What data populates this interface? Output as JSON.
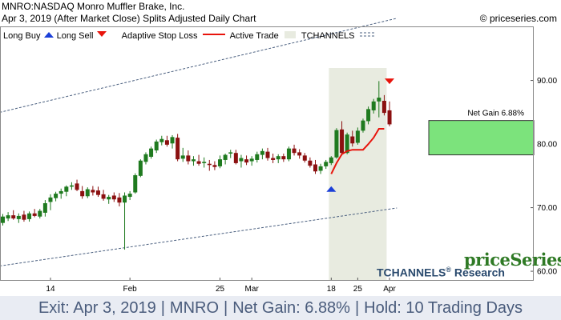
{
  "header": {
    "title": "MNRO:NASDAQ Monro Muffler Brake, Inc.",
    "subtitle": "Apr 3, 2019 (After Market Close)  Splits Adjusted Daily Chart",
    "copyright": "© priceseries.com"
  },
  "legend": {
    "long_buy": "Long Buy",
    "long_sell": "Long Sell",
    "stop_loss": "Adaptive Stop Loss",
    "active_trade": "Active Trade",
    "tchannels": "TCHANNELS"
  },
  "branding": {
    "logo_text": "priceSeries",
    "tchannels_text": "TCHANNELS",
    "reg": "®",
    "research_text": "Research"
  },
  "footer": {
    "exit": "Exit: Apr 3, 2019",
    "symbol": "MNRO",
    "gain": "Net Gain: 6.88%",
    "hold": "Hold: 10 Trading Days"
  },
  "colors": {
    "up_candle": "#1f7a1f",
    "down_candle": "#8b1010",
    "stop_loss": "#e8140c",
    "channel": "#4a5f7f",
    "active_trade_bg": "#e8ebe0",
    "gain_box": "#7ce37c",
    "buy_arrow": "#1b3fd8",
    "sell_arrow": "#e8140c"
  },
  "chart_data": {
    "type": "candlestick",
    "y_axis": {
      "ticks": [
        60,
        70,
        80,
        90
      ],
      "tick_labels": [
        "60.00",
        "70.00",
        "80.00",
        "90.00"
      ],
      "ylim": [
        58.5,
        98.5
      ],
      "position": "right"
    },
    "x_axis": {
      "tick_labels": [
        "14",
        "Feb",
        "25",
        "Mar",
        "18",
        "25",
        "Apr"
      ],
      "tick_index": [
        9,
        24,
        41,
        47,
        62,
        67,
        73
      ]
    },
    "grid": false,
    "candles": [
      [
        67.6,
        69.0,
        67.2,
        68.6
      ],
      [
        68.3,
        69.3,
        67.9,
        68.8
      ],
      [
        68.8,
        69.6,
        68.1,
        68.3
      ],
      [
        68.2,
        69.1,
        67.6,
        68.7
      ],
      [
        68.9,
        69.5,
        67.8,
        68.1
      ],
      [
        68.2,
        69.4,
        67.8,
        69.1
      ],
      [
        69.1,
        69.8,
        68.5,
        68.7
      ],
      [
        68.6,
        69.8,
        68.3,
        69.5
      ],
      [
        69.2,
        71.2,
        68.6,
        70.7
      ],
      [
        70.9,
        72.1,
        69.6,
        71.6
      ],
      [
        71.5,
        72.5,
        71.0,
        72.2
      ],
      [
        72.2,
        73.0,
        71.4,
        72.6
      ],
      [
        72.5,
        73.5,
        71.8,
        73.3
      ],
      [
        73.3,
        74.0,
        72.8,
        73.5
      ],
      [
        73.8,
        74.4,
        72.6,
        72.8
      ],
      [
        72.6,
        73.4,
        71.4,
        71.8
      ],
      [
        71.8,
        73.2,
        71.5,
        72.9
      ],
      [
        72.8,
        73.4,
        71.9,
        72.4
      ],
      [
        72.7,
        73.3,
        71.7,
        72.0
      ],
      [
        72.1,
        72.8,
        71.1,
        71.4
      ],
      [
        71.3,
        72.0,
        70.6,
        71.7
      ],
      [
        71.9,
        72.4,
        70.9,
        71.3
      ],
      [
        71.6,
        72.3,
        70.2,
        70.8
      ],
      [
        70.8,
        72.4,
        63.4,
        71.9
      ],
      [
        71.7,
        72.6,
        71.2,
        72.2
      ],
      [
        72.4,
        75.4,
        72.2,
        75.1
      ],
      [
        75.0,
        77.6,
        74.8,
        77.4
      ],
      [
        77.2,
        78.7,
        76.8,
        78.4
      ],
      [
        78.0,
        79.6,
        77.7,
        79.3
      ],
      [
        79.0,
        80.7,
        78.6,
        80.4
      ],
      [
        80.3,
        81.3,
        79.8,
        80.8
      ],
      [
        80.6,
        81.3,
        79.6,
        79.9
      ],
      [
        80.1,
        81.4,
        79.3,
        81.1
      ],
      [
        81.0,
        81.6,
        77.3,
        77.6
      ],
      [
        77.7,
        79.4,
        77.2,
        78.2
      ],
      [
        78.2,
        79.0,
        76.8,
        77.3
      ],
      [
        77.3,
        78.1,
        76.6,
        77.6
      ],
      [
        77.3,
        78.3,
        76.6,
        76.9
      ],
      [
        77.0,
        77.9,
        76.3,
        77.2
      ],
      [
        76.9,
        77.5,
        75.8,
        76.7
      ],
      [
        76.7,
        77.3,
        75.9,
        76.4
      ],
      [
        76.5,
        78.2,
        76.2,
        77.6
      ],
      [
        77.5,
        78.5,
        76.8,
        78.3
      ],
      [
        78.5,
        79.1,
        77.8,
        78.7
      ],
      [
        78.6,
        79.1,
        76.8,
        77.0
      ],
      [
        77.3,
        78.3,
        76.3,
        77.8
      ],
      [
        77.6,
        78.2,
        76.7,
        77.1
      ],
      [
        77.3,
        78.1,
        76.6,
        77.7
      ],
      [
        77.5,
        78.8,
        77.1,
        78.4
      ],
      [
        78.3,
        79.3,
        77.6,
        78.9
      ],
      [
        78.8,
        79.4,
        77.4,
        77.8
      ],
      [
        77.8,
        78.5,
        77.0,
        77.5
      ],
      [
        77.6,
        78.4,
        77.0,
        78.1
      ],
      [
        78.1,
        78.5,
        77.2,
        77.6
      ],
      [
        77.6,
        79.6,
        77.3,
        79.3
      ],
      [
        79.3,
        79.9,
        78.2,
        78.6
      ],
      [
        78.7,
        79.2,
        77.7,
        78.2
      ],
      [
        78.2,
        78.6,
        77.1,
        77.4
      ],
      [
        77.4,
        77.9,
        76.3,
        76.6
      ],
      [
        76.8,
        77.5,
        75.3,
        75.7
      ],
      [
        75.8,
        76.9,
        75.3,
        76.5
      ],
      [
        76.5,
        77.5,
        76.1,
        77.2
      ],
      [
        77.0,
        78.1,
        76.7,
        77.9
      ],
      [
        77.9,
        82.5,
        77.7,
        82.2
      ],
      [
        82.3,
        83.6,
        78.2,
        78.6
      ],
      [
        78.6,
        81.8,
        78.4,
        81.5
      ],
      [
        81.2,
        82.1,
        79.6,
        80.1
      ],
      [
        80.2,
        82.6,
        79.9,
        82.1
      ],
      [
        82.1,
        84.0,
        81.8,
        83.7
      ],
      [
        83.6,
        85.9,
        83.1,
        85.5
      ],
      [
        85.3,
        87.1,
        84.8,
        86.7
      ],
      [
        86.7,
        89.9,
        84.2,
        87.3
      ],
      [
        86.8,
        87.7,
        84.5,
        84.9
      ],
      [
        85.3,
        86.7,
        82.8,
        83.1
      ]
    ],
    "stop_loss": [
      {
        "i": 62,
        "v": 75.3
      },
      {
        "i": 63,
        "v": 77.0
      },
      {
        "i": 64,
        "v": 78.4
      },
      {
        "i": 65,
        "v": 78.9
      },
      {
        "i": 66,
        "v": 79.1
      },
      {
        "i": 67,
        "v": 79.1
      },
      {
        "i": 68,
        "v": 79.1
      },
      {
        "i": 69,
        "v": 80.0
      },
      {
        "i": 70,
        "v": 81.0
      },
      {
        "i": 71,
        "v": 82.4
      },
      {
        "i": 72,
        "v": 82.4
      }
    ],
    "channel_upper": [
      {
        "i": 0,
        "v": 85.1
      },
      {
        "i": 74,
        "v": 99.7
      }
    ],
    "channel_lower": [
      {
        "i": 0,
        "v": 60.9
      },
      {
        "i": 74,
        "v": 69.9
      }
    ],
    "active_trade": {
      "start_index": 62,
      "end_index": 72
    },
    "buy_signal": {
      "index": 62,
      "price": 73.0
    },
    "sell_signal": {
      "index": 73,
      "price": 89.8
    },
    "gain_box": {
      "low": 78.3,
      "high": 83.7,
      "label": "Net Gain 6.88%"
    }
  }
}
